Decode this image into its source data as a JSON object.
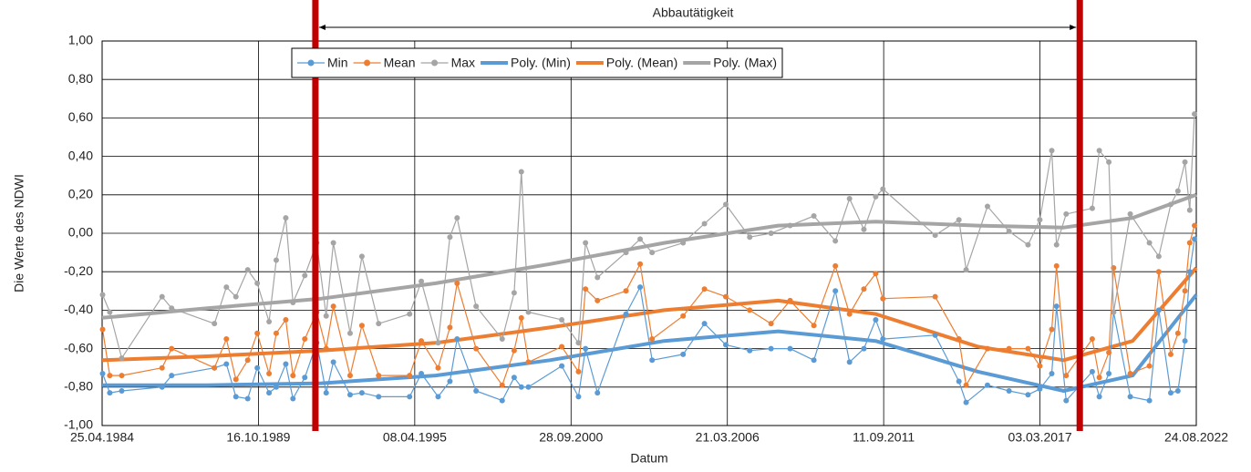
{
  "chart_data": {
    "type": "line",
    "annotation": "Abbautätigkeit",
    "vlines": [
      "1991-10-15",
      "2018-07-25"
    ],
    "vline_color": "#c00000",
    "xlabel": "Datum",
    "ylabel": "Die Werte des NDWI",
    "xlim": [
      "1984-04-25",
      "2022-08-24"
    ],
    "xticks": [
      {
        "value": "1984-04-25",
        "label": "25.04.1984"
      },
      {
        "value": "1989-10-16",
        "label": "16.10.1989"
      },
      {
        "value": "1995-04-08",
        "label": "08.04.1995"
      },
      {
        "value": "2000-09-28",
        "label": "28.09.2000"
      },
      {
        "value": "2006-03-21",
        "label": "21.03.2006"
      },
      {
        "value": "2011-09-11",
        "label": "11.09.2011"
      },
      {
        "value": "2017-03-03",
        "label": "03.03.2017"
      },
      {
        "value": "2022-08-24",
        "label": "24.08.2022"
      }
    ],
    "ylim": [
      -1,
      1
    ],
    "yticks": [
      {
        "value": -1,
        "label": "-1,00"
      },
      {
        "value": -0.8,
        "label": "-0,80"
      },
      {
        "value": -0.6,
        "label": "-0,60"
      },
      {
        "value": -0.4,
        "label": "-0,40"
      },
      {
        "value": -0.2,
        "label": "-0,20"
      },
      {
        "value": 0,
        "label": "0,00"
      },
      {
        "value": 0.2,
        "label": "0,20"
      },
      {
        "value": 0.4,
        "label": "0,40"
      },
      {
        "value": 0.6,
        "label": "0,60"
      },
      {
        "value": 0.8,
        "label": "0,80"
      },
      {
        "value": 1,
        "label": "1,00"
      }
    ],
    "grid": true,
    "legend": "top",
    "x": [
      "1984-05-01",
      "1984-08-01",
      "1985-01-01",
      "1986-06-01",
      "1986-10-01",
      "1988-04-01",
      "1988-09-01",
      "1989-01-01",
      "1989-06-01",
      "1989-10-01",
      "1990-03-01",
      "1990-06-01",
      "1990-10-01",
      "1991-01-01",
      "1991-06-01",
      "1991-11-01",
      "1992-03-01",
      "1992-06-01",
      "1993-01-01",
      "1993-06-01",
      "1994-01-01",
      "1995-02-01",
      "1995-07-01",
      "1996-02-01",
      "1996-07-01",
      "1996-10-01",
      "1997-06-01",
      "1998-05-01",
      "1998-10-01",
      "1999-01-01",
      "1999-04-01",
      "2000-06-01",
      "2001-01-01",
      "2001-04-01",
      "2001-09-01",
      "2002-09-01",
      "2003-03-01",
      "2003-08-01",
      "2004-09-01",
      "2005-06-01",
      "2006-03-01",
      "2007-01-01",
      "2007-10-01",
      "2008-06-01",
      "2009-04-01",
      "2010-01-01",
      "2010-07-01",
      "2011-01-01",
      "2011-06-01",
      "2011-09-01",
      "2013-07-01",
      "2014-05-01",
      "2014-08-01",
      "2015-05-01",
      "2016-02-01",
      "2016-10-01",
      "2017-03-01",
      "2017-08-01",
      "2017-10-01",
      "2018-02-01",
      "2019-01-01",
      "2019-04-01",
      "2019-08-01",
      "2019-10-01",
      "2020-05-01",
      "2021-01-01",
      "2021-05-01",
      "2021-10-01",
      "2022-01-01",
      "2022-04-01",
      "2022-06-01",
      "2022-08-01"
    ],
    "series": [
      {
        "name": "Min",
        "color": "#5b9bd5",
        "width": 1.2,
        "marker": true,
        "values": [
          -0.73,
          -0.83,
          -0.82,
          -0.8,
          -0.74,
          -0.7,
          -0.68,
          -0.85,
          -0.86,
          -0.7,
          -0.83,
          -0.8,
          -0.68,
          -0.86,
          -0.75,
          -0.57,
          -0.83,
          -0.67,
          -0.84,
          -0.83,
          -0.85,
          -0.85,
          -0.73,
          -0.85,
          -0.77,
          -0.55,
          -0.82,
          -0.87,
          -0.75,
          -0.8,
          -0.8,
          -0.69,
          -0.85,
          -0.6,
          -0.83,
          -0.42,
          -0.28,
          -0.66,
          -0.63,
          -0.47,
          -0.58,
          -0.61,
          -0.6,
          -0.6,
          -0.66,
          -0.3,
          -0.67,
          -0.6,
          -0.45,
          -0.55,
          -0.53,
          -0.77,
          -0.88,
          -0.79,
          -0.82,
          -0.84,
          -0.81,
          -0.73,
          -0.38,
          -0.87,
          -0.72,
          -0.85,
          -0.73,
          -0.41,
          -0.85,
          -0.87,
          -0.4,
          -0.83,
          -0.82,
          -0.56,
          -0.2,
          -0.03
        ]
      },
      {
        "name": "Mean",
        "color": "#ed7d31",
        "width": 1.2,
        "marker": true,
        "values": [
          -0.5,
          -0.74,
          -0.74,
          -0.7,
          -0.6,
          -0.7,
          -0.55,
          -0.76,
          -0.66,
          -0.52,
          -0.73,
          -0.52,
          -0.45,
          -0.74,
          -0.55,
          -0.41,
          -0.6,
          -0.38,
          -0.74,
          -0.48,
          -0.74,
          -0.74,
          -0.56,
          -0.7,
          -0.49,
          -0.26,
          -0.6,
          -0.79,
          -0.61,
          -0.44,
          -0.67,
          -0.59,
          -0.72,
          -0.29,
          -0.35,
          -0.3,
          -0.16,
          -0.55,
          -0.43,
          -0.29,
          -0.33,
          -0.4,
          -0.47,
          -0.35,
          -0.48,
          -0.17,
          -0.42,
          -0.29,
          -0.21,
          -0.34,
          -0.33,
          -0.55,
          -0.79,
          -0.6,
          -0.6,
          -0.6,
          -0.69,
          -0.5,
          -0.17,
          -0.74,
          -0.55,
          -0.75,
          -0.62,
          -0.18,
          -0.73,
          -0.69,
          -0.2,
          -0.63,
          -0.52,
          -0.3,
          -0.05,
          0.04
        ]
      },
      {
        "name": "Max",
        "color": "#a5a5a5",
        "width": 1.2,
        "marker": true,
        "values": [
          -0.32,
          -0.41,
          -0.65,
          -0.33,
          -0.39,
          -0.47,
          -0.28,
          -0.33,
          -0.19,
          -0.26,
          -0.46,
          -0.14,
          0.08,
          -0.36,
          -0.22,
          -0.05,
          -0.43,
          -0.05,
          -0.52,
          -0.12,
          -0.47,
          -0.42,
          -0.25,
          -0.57,
          -0.02,
          0.08,
          -0.38,
          -0.55,
          -0.31,
          0.32,
          -0.41,
          -0.45,
          -0.57,
          -0.05,
          -0.23,
          -0.1,
          -0.03,
          -0.1,
          -0.05,
          0.05,
          0.15,
          -0.02,
          0.0,
          0.04,
          0.09,
          -0.04,
          0.18,
          0.02,
          0.19,
          0.23,
          -0.01,
          0.07,
          -0.19,
          0.14,
          0.01,
          -0.06,
          0.07,
          0.43,
          -0.06,
          0.1,
          0.13,
          0.43,
          0.37,
          -0.41,
          0.1,
          -0.05,
          -0.12,
          0.15,
          0.22,
          0.37,
          0.12,
          0.62
        ]
      },
      {
        "name": "Poly. (Min)",
        "color": "#5b9bd5",
        "width": 4,
        "marker": false,
        "x": [
          "1984-04-25",
          "1988-01-01",
          "1992-01-01",
          "1996-01-01",
          "2000-01-01",
          "2004-01-01",
          "2008-01-01",
          "2011-06-01",
          "2015-01-01",
          "2018-01-01",
          "2020-06-01",
          "2022-08-24"
        ],
        "values": [
          -0.79,
          -0.79,
          -0.78,
          -0.74,
          -0.66,
          -0.56,
          -0.51,
          -0.56,
          -0.72,
          -0.82,
          -0.74,
          -0.32
        ]
      },
      {
        "name": "Poly. (Mean)",
        "color": "#ed7d31",
        "width": 4,
        "marker": false,
        "x": [
          "1984-04-25",
          "1988-01-01",
          "1992-01-01",
          "1996-01-01",
          "2000-01-01",
          "2004-01-01",
          "2008-01-01",
          "2011-06-01",
          "2015-01-01",
          "2018-01-01",
          "2020-06-01",
          "2022-08-24"
        ],
        "values": [
          -0.66,
          -0.64,
          -0.61,
          -0.57,
          -0.49,
          -0.4,
          -0.35,
          -0.42,
          -0.59,
          -0.66,
          -0.56,
          -0.18
        ]
      },
      {
        "name": "Poly. (Max)",
        "color": "#a5a5a5",
        "width": 4,
        "marker": false,
        "x": [
          "1984-04-25",
          "1988-01-01",
          "1992-01-01",
          "1996-01-01",
          "2000-01-01",
          "2004-01-01",
          "2008-01-01",
          "2011-06-01",
          "2015-01-01",
          "2018-01-01",
          "2020-06-01",
          "2022-08-24"
        ],
        "values": [
          -0.44,
          -0.39,
          -0.34,
          -0.26,
          -0.16,
          -0.05,
          0.04,
          0.06,
          0.04,
          0.03,
          0.08,
          0.2
        ]
      }
    ]
  }
}
